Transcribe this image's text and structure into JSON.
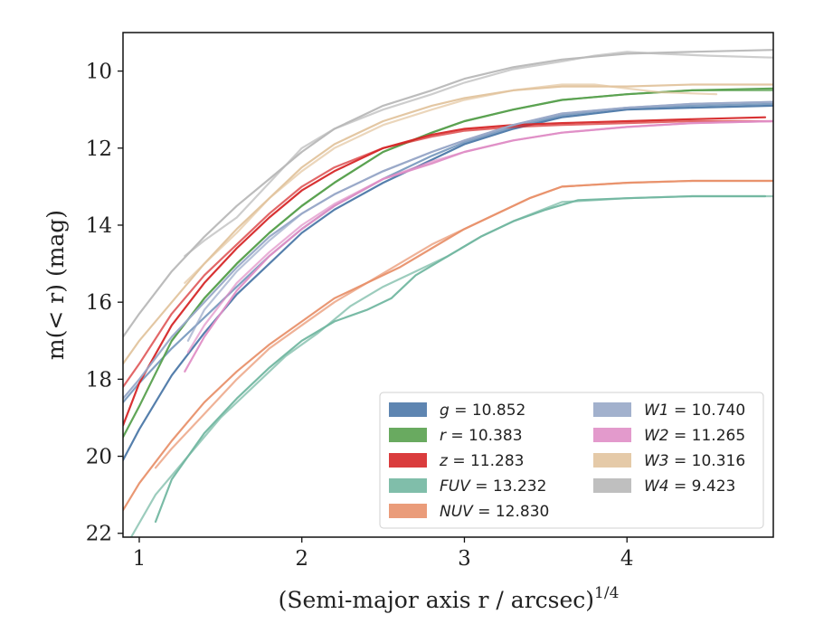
{
  "chart_data": {
    "type": "line",
    "xlabel": "(Semi-major axis r / arcsec)",
    "xlabel_exponent": "1/4",
    "ylabel": "m(< r) (mag)",
    "xlim": [
      0.9,
      4.9
    ],
    "ylim": [
      22.1,
      9.0
    ],
    "y_inverted": true,
    "x_ticks": [
      1,
      2,
      3,
      4
    ],
    "y_ticks": [
      10,
      12,
      14,
      16,
      18,
      20,
      22
    ],
    "grid": false,
    "legend_position": "lower-right",
    "legend_columns": 2,
    "series": [
      {
        "name": "g = 10.852",
        "label_var": "g",
        "label_value": "10.852",
        "color": "#4c78a8",
        "curves": [
          {
            "x": [
              0.9,
              1.0,
              1.2,
              1.4,
              1.6,
              1.8,
              2.0,
              2.2,
              2.5,
              2.8,
              3.0,
              3.3,
              3.6,
              4.0,
              4.4,
              4.9
            ],
            "y": [
              20.1,
              19.3,
              17.9,
              16.8,
              15.8,
              15.0,
              14.2,
              13.6,
              12.9,
              12.3,
              11.9,
              11.5,
              11.2,
              11.0,
              10.95,
              10.9
            ]
          },
          {
            "x": [
              0.9,
              1.0,
              1.2,
              1.4,
              1.6,
              1.8,
              2.0,
              2.2,
              2.5,
              2.8,
              3.0,
              3.3,
              3.6,
              4.0,
              4.4,
              4.9
            ],
            "y": [
              18.6,
              18.1,
              17.2,
              16.4,
              15.6,
              14.8,
              14.1,
              13.5,
              12.8,
              12.2,
              11.85,
              11.45,
              11.15,
              10.95,
              10.9,
              10.85
            ]
          }
        ]
      },
      {
        "name": "r = 10.383",
        "label_var": "r",
        "label_value": "10.383",
        "color": "#59a14f",
        "curves": [
          {
            "x": [
              0.9,
              1.0,
              1.2,
              1.4,
              1.6,
              1.8,
              2.0,
              2.2,
              2.5,
              2.8,
              3.0,
              3.3,
              3.6,
              4.0,
              4.4,
              4.9
            ],
            "y": [
              19.5,
              18.7,
              17.0,
              15.9,
              15.0,
              14.2,
              13.5,
              12.9,
              12.1,
              11.6,
              11.3,
              11.0,
              10.75,
              10.6,
              10.5,
              10.45
            ]
          },
          {
            "x": [
              1.2,
              1.4,
              1.6,
              1.8,
              2.0,
              2.2,
              2.5,
              2.8,
              3.0,
              3.3,
              3.6,
              4.0,
              4.4,
              4.9
            ],
            "y": [
              17.0,
              15.9,
              15.0,
              14.2,
              13.5,
              12.9,
              12.1,
              11.6,
              11.3,
              11.0,
              10.75,
              10.6,
              10.5,
              10.5
            ]
          }
        ]
      },
      {
        "name": "z = 11.283",
        "label_var": "z",
        "label_value": "11.283",
        "color": "#d62728",
        "curves": [
          {
            "x": [
              0.9,
              1.0,
              1.2,
              1.4,
              1.6,
              1.8,
              2.0,
              2.2,
              2.5,
              2.8,
              3.0,
              3.3,
              3.6,
              4.0,
              4.4,
              4.85
            ],
            "y": [
              19.2,
              18.1,
              16.6,
              15.5,
              14.6,
              13.8,
              13.1,
              12.6,
              12.0,
              11.65,
              11.5,
              11.4,
              11.35,
              11.3,
              11.25,
              11.2
            ]
          },
          {
            "x": [
              0.9,
              1.0,
              1.2,
              1.4,
              1.6,
              1.8,
              2.0,
              2.2,
              2.5,
              2.8,
              3.0,
              3.3,
              3.6,
              4.0,
              4.4,
              4.9
            ],
            "y": [
              18.2,
              17.6,
              16.3,
              15.3,
              14.5,
              13.7,
              13.0,
              12.5,
              12.0,
              11.7,
              11.55,
              11.45,
              11.4,
              11.35,
              11.3,
              11.3
            ]
          }
        ]
      },
      {
        "name": "FUV = 13.232",
        "label_var": "FUV",
        "label_value": "13.232",
        "color": "#72b7a1",
        "curves": [
          {
            "x": [
              1.1,
              1.2,
              1.4,
              1.6,
              1.8,
              2.0,
              2.2,
              2.4,
              2.55,
              2.7,
              2.9,
              3.1,
              3.3,
              3.5,
              3.7,
              4.0,
              4.4,
              4.85
            ],
            "y": [
              21.7,
              20.6,
              19.4,
              18.5,
              17.7,
              17.0,
              16.5,
              16.2,
              15.9,
              15.3,
              14.8,
              14.3,
              13.9,
              13.6,
              13.35,
              13.3,
              13.25,
              13.25
            ]
          },
          {
            "x": [
              0.95,
              1.1,
              1.3,
              1.5,
              1.7,
              1.9,
              2.1,
              2.3,
              2.5,
              2.7,
              2.9,
              3.1,
              3.3,
              3.6,
              4.0,
              4.4,
              4.9
            ],
            "y": [
              22.1,
              21.0,
              20.0,
              19.0,
              18.2,
              17.4,
              16.8,
              16.1,
              15.6,
              15.2,
              14.8,
              14.3,
              13.9,
              13.4,
              13.3,
              13.25,
              13.25
            ]
          }
        ]
      },
      {
        "name": "NUV = 12.830",
        "label_var": "NUV",
        "label_value": "12.830",
        "color": "#e8916b",
        "curves": [
          {
            "x": [
              0.9,
              1.0,
              1.2,
              1.4,
              1.6,
              1.8,
              2.0,
              2.2,
              2.4,
              2.6,
              2.8,
              3.0,
              3.2,
              3.4,
              3.6,
              4.0,
              4.4,
              4.9
            ],
            "y": [
              21.4,
              20.7,
              19.6,
              18.6,
              17.8,
              17.1,
              16.5,
              15.9,
              15.5,
              15.1,
              14.6,
              14.1,
              13.7,
              13.3,
              13.0,
              12.9,
              12.85,
              12.85
            ]
          },
          {
            "x": [
              1.1,
              1.2,
              1.4,
              1.6,
              1.8,
              2.0,
              2.2,
              2.4,
              2.6,
              2.8,
              3.0,
              3.2,
              3.4,
              3.6,
              4.0,
              4.4,
              4.9
            ],
            "y": [
              20.3,
              19.8,
              18.9,
              18.0,
              17.2,
              16.6,
              16.0,
              15.5,
              15.0,
              14.5,
              14.1,
              13.7,
              13.3,
              13.0,
              12.9,
              12.85,
              12.85
            ]
          }
        ]
      },
      {
        "name": "W1 = 10.740",
        "label_var": "W1",
        "label_value": "10.740",
        "color": "#98a8c8",
        "curves": [
          {
            "x": [
              0.9,
              1.0,
              1.2,
              1.4,
              1.6,
              1.8,
              2.0,
              2.2,
              2.5,
              2.8,
              3.0,
              3.3,
              3.6,
              4.0,
              4.4,
              4.9
            ],
            "y": [
              18.5,
              18.0,
              16.9,
              16.0,
              15.1,
              14.3,
              13.7,
              13.2,
              12.6,
              12.1,
              11.8,
              11.4,
              11.1,
              10.95,
              10.85,
              10.8
            ]
          },
          {
            "x": [
              1.3,
              1.4,
              1.6,
              1.8,
              2.0,
              2.2,
              2.5,
              2.8,
              3.0,
              3.3,
              3.6,
              4.0,
              4.4,
              4.9
            ],
            "y": [
              17.0,
              16.2,
              15.2,
              14.4,
              13.7,
              13.2,
              12.6,
              12.1,
              11.8,
              11.4,
              11.1,
              10.95,
              10.85,
              10.8
            ]
          }
        ]
      },
      {
        "name": "W2 = 11.265",
        "label_var": "W2",
        "label_value": "11.265",
        "color": "#e08fc6",
        "curves": [
          {
            "x": [
              1.28,
              1.4,
              1.6,
              1.8,
              2.0,
              2.2,
              2.5,
              2.8,
              3.0,
              3.3,
              3.6,
              4.0,
              4.4,
              4.9
            ],
            "y": [
              17.8,
              16.9,
              15.7,
              14.8,
              14.1,
              13.5,
              12.8,
              12.4,
              12.1,
              11.8,
              11.6,
              11.45,
              11.35,
              11.3
            ]
          },
          {
            "x": [
              1.3,
              1.4,
              1.6,
              1.8,
              2.0,
              2.2,
              2.5,
              2.8,
              3.0,
              3.3,
              3.6,
              4.0,
              4.4,
              4.9
            ],
            "y": [
              17.3,
              16.6,
              15.5,
              14.7,
              14.0,
              13.45,
              12.8,
              12.35,
              12.1,
              11.8,
              11.6,
              11.45,
              11.35,
              11.3
            ]
          }
        ]
      },
      {
        "name": "W3 = 10.316",
        "label_var": "W3",
        "label_value": "10.316",
        "color": "#e2c49e",
        "curves": [
          {
            "x": [
              0.9,
              1.0,
              1.2,
              1.4,
              1.6,
              1.8,
              2.0,
              2.2,
              2.5,
              2.8,
              3.0,
              3.3,
              3.6,
              4.0,
              4.4,
              4.9
            ],
            "y": [
              17.6,
              17.0,
              16.0,
              15.0,
              14.1,
              13.3,
              12.5,
              11.9,
              11.3,
              10.9,
              10.7,
              10.5,
              10.4,
              10.4,
              10.35,
              10.35
            ]
          },
          {
            "x": [
              1.28,
              1.4,
              1.6,
              1.8,
              2.0,
              2.2,
              2.5,
              2.8,
              3.0,
              3.3,
              3.6,
              3.8,
              4.0,
              4.2,
              4.55
            ],
            "y": [
              15.5,
              15.0,
              14.2,
              13.3,
              12.6,
              12.0,
              11.4,
              11.0,
              10.75,
              10.5,
              10.35,
              10.35,
              10.45,
              10.55,
              10.6
            ]
          }
        ]
      },
      {
        "name": "W4 = 9.423",
        "label_var": "W4",
        "label_value": "9.423",
        "color": "#b8b8b8",
        "curves": [
          {
            "x": [
              0.9,
              1.0,
              1.2,
              1.4,
              1.6,
              1.8,
              2.0,
              2.2,
              2.5,
              2.8,
              3.0,
              3.3,
              3.6,
              4.0,
              4.4,
              4.9
            ],
            "y": [
              16.9,
              16.3,
              15.2,
              14.3,
              13.5,
              12.8,
              12.1,
              11.5,
              10.9,
              10.5,
              10.2,
              9.9,
              9.7,
              9.55,
              9.5,
              9.45
            ]
          },
          {
            "x": [
              1.28,
              1.4,
              1.6,
              1.8,
              2.0,
              2.2,
              2.5,
              2.8,
              3.0,
              3.3,
              3.6,
              3.8,
              4.0,
              4.2,
              4.5,
              4.9
            ],
            "y": [
              14.8,
              14.4,
              13.8,
              12.9,
              12.0,
              11.5,
              11.0,
              10.6,
              10.3,
              9.95,
              9.75,
              9.6,
              9.5,
              9.55,
              9.6,
              9.65
            ]
          }
        ]
      }
    ]
  }
}
